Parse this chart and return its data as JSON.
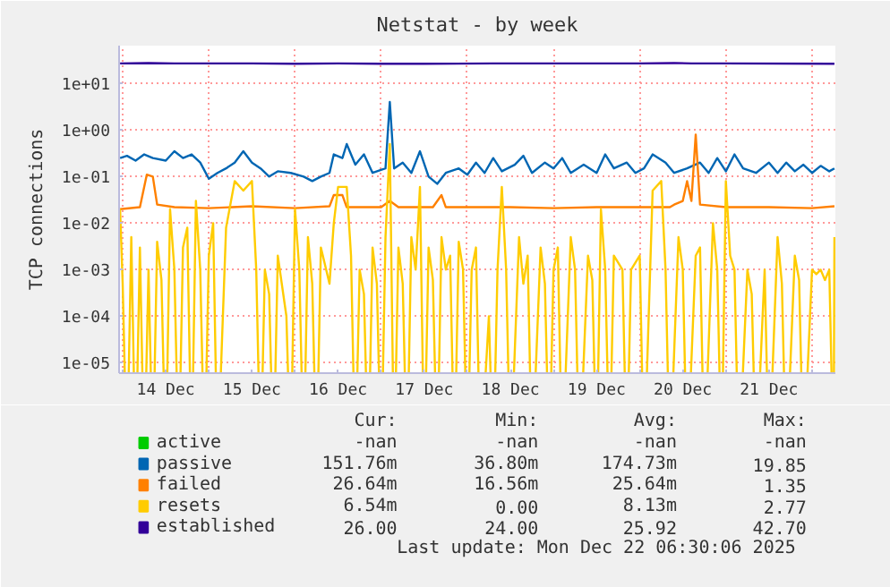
{
  "chart_data": {
    "type": "line",
    "title": "Netstat - by week",
    "ylabel": "TCP connections",
    "log": true,
    "grid": true,
    "legend": "bottom",
    "line_style": "solid",
    "xlim": [
      "2025-12-13T23:00",
      "2025-12-22T06:30"
    ],
    "xticks": [
      {
        "value": "2025-12-14T00:00",
        "label": null
      },
      {
        "value": "2025-12-14T12:00",
        "label": "14 Dec"
      },
      {
        "value": "2025-12-15T00:00",
        "label": null
      },
      {
        "value": "2025-12-15T12:00",
        "label": "15 Dec"
      },
      {
        "value": "2025-12-16T00:00",
        "label": null
      },
      {
        "value": "2025-12-16T12:00",
        "label": "16 Dec"
      },
      {
        "value": "2025-12-17T00:00",
        "label": null
      },
      {
        "value": "2025-12-17T12:00",
        "label": "17 Dec"
      },
      {
        "value": "2025-12-18T00:00",
        "label": null
      },
      {
        "value": "2025-12-18T12:00",
        "label": "18 Dec"
      },
      {
        "value": "2025-12-19T00:00",
        "label": null
      },
      {
        "value": "2025-12-19T12:00",
        "label": "19 Dec"
      },
      {
        "value": "2025-12-20T00:00",
        "label": null
      },
      {
        "value": "2025-12-20T12:00",
        "label": "20 Dec"
      },
      {
        "value": "2025-12-21T00:00",
        "label": null
      },
      {
        "value": "2025-12-21T12:00",
        "label": "21 Dec"
      },
      {
        "value": "2025-12-22T00:00",
        "label": null
      }
    ],
    "ylim": [
      6e-06,
      65
    ],
    "yticks": [
      {
        "value": 1e-05,
        "label": "1e-05"
      },
      {
        "value": 0.0001,
        "label": "1e-04"
      },
      {
        "value": 0.001,
        "label": "1e-03"
      },
      {
        "value": 0.01,
        "label": "1e-02"
      },
      {
        "value": 0.1,
        "label": "1e-01"
      },
      {
        "value": 1,
        "label": "1e+00"
      },
      {
        "value": 10,
        "label": "1e+01"
      }
    ],
    "series": [
      {
        "name": "active",
        "color": "#00cc00"
      },
      {
        "name": "passive",
        "color": "#0066b3",
        "x": [
          "2025-12-13T23:17",
          "2025-12-14T01:12",
          "2025-12-14T03:36",
          "2025-12-14T06:00",
          "2025-12-14T08:24",
          "2025-12-14T12:00",
          "2025-12-14T14:24",
          "2025-12-14T16:48",
          "2025-12-14T19:12",
          "2025-12-14T21:36",
          "2025-12-15T00:00",
          "2025-12-15T02:24",
          "2025-12-15T04:48",
          "2025-12-15T07:12",
          "2025-12-15T09:36",
          "2025-12-15T12:00",
          "2025-12-15T14:24",
          "2025-12-15T16:48",
          "2025-12-15T19:12",
          "2025-12-15T22:48",
          "2025-12-16T02:24",
          "2025-12-16T04:48",
          "2025-12-16T07:12",
          "2025-12-16T09:36",
          "2025-12-16T10:48",
          "2025-12-16T13:12",
          "2025-12-16T14:24",
          "2025-12-16T16:48",
          "2025-12-16T19:12",
          "2025-12-16T21:36",
          "2025-12-17T01:12",
          "2025-12-17T02:24",
          "2025-12-17T03:36",
          "2025-12-17T06:00",
          "2025-12-17T08:24",
          "2025-12-17T10:48",
          "2025-12-17T13:12",
          "2025-12-17T15:36",
          "2025-12-17T18:00",
          "2025-12-17T21:36",
          "2025-12-18T00:00",
          "2025-12-18T02:24",
          "2025-12-18T04:48",
          "2025-12-18T07:12",
          "2025-12-18T09:36",
          "2025-12-18T13:12",
          "2025-12-18T15:36",
          "2025-12-18T18:00",
          "2025-12-18T21:36",
          "2025-12-19T00:00",
          "2025-12-19T02:24",
          "2025-12-19T04:48",
          "2025-12-19T08:24",
          "2025-12-19T12:00",
          "2025-12-19T14:24",
          "2025-12-19T16:48",
          "2025-12-19T20:24",
          "2025-12-19T22:48",
          "2025-12-20T01:12",
          "2025-12-20T03:36",
          "2025-12-20T07:12",
          "2025-12-20T09:36",
          "2025-12-20T13:12",
          "2025-12-20T16:48",
          "2025-12-20T19:12",
          "2025-12-20T21:36",
          "2025-12-21T00:00",
          "2025-12-21T02:24",
          "2025-12-21T04:48",
          "2025-12-21T08:24",
          "2025-12-21T12:00",
          "2025-12-21T14:24",
          "2025-12-21T16:48",
          "2025-12-21T19:12",
          "2025-12-21T21:36",
          "2025-12-22T00:00",
          "2025-12-22T02:24",
          "2025-12-22T04:48",
          "2025-12-22T06:14"
        ],
        "values": [
          0.25,
          0.28,
          0.22,
          0.3,
          0.25,
          0.22,
          0.35,
          0.25,
          0.3,
          0.2,
          0.09,
          0.12,
          0.15,
          0.2,
          0.35,
          0.2,
          0.15,
          0.1,
          0.13,
          0.12,
          0.1,
          0.08,
          0.1,
          0.12,
          0.3,
          0.25,
          0.5,
          0.18,
          0.3,
          0.12,
          0.15,
          4.0,
          0.15,
          0.2,
          0.12,
          0.35,
          0.1,
          0.07,
          0.12,
          0.15,
          0.11,
          0.2,
          0.12,
          0.25,
          0.13,
          0.18,
          0.28,
          0.12,
          0.2,
          0.15,
          0.25,
          0.12,
          0.18,
          0.12,
          0.3,
          0.15,
          0.2,
          0.12,
          0.15,
          0.3,
          0.2,
          0.12,
          0.15,
          0.2,
          0.12,
          0.25,
          0.13,
          0.3,
          0.15,
          0.12,
          0.2,
          0.12,
          0.2,
          0.13,
          0.18,
          0.12,
          0.17,
          0.13,
          0.15
        ]
      },
      {
        "name": "failed",
        "color": "#ff8000",
        "x": [
          "2025-12-13T23:17",
          "2025-12-14T04:48",
          "2025-12-14T06:43",
          "2025-12-14T08:24",
          "2025-12-14T09:36",
          "2025-12-14T14:24",
          "2025-12-15T00:00",
          "2025-12-15T12:00",
          "2025-12-16T00:00",
          "2025-12-16T09:36",
          "2025-12-16T10:48",
          "2025-12-16T13:12",
          "2025-12-16T14:24",
          "2025-12-17T00:00",
          "2025-12-17T02:24",
          "2025-12-17T04:48",
          "2025-12-17T14:24",
          "2025-12-17T16:48",
          "2025-12-17T18:00",
          "2025-12-18T12:00",
          "2025-12-19T00:00",
          "2025-12-19T12:00",
          "2025-12-20T00:00",
          "2025-12-20T08:24",
          "2025-12-20T09:36",
          "2025-12-20T12:00",
          "2025-12-20T13:12",
          "2025-12-20T14:24",
          "2025-12-20T15:36",
          "2025-12-20T16:48",
          "2025-12-21T00:00",
          "2025-12-21T12:00",
          "2025-12-22T00:00",
          "2025-12-22T06:14"
        ],
        "values": [
          0.02,
          0.022,
          0.11,
          0.1,
          0.025,
          0.022,
          0.021,
          0.023,
          0.021,
          0.023,
          0.04,
          0.04,
          0.022,
          0.022,
          0.03,
          0.022,
          0.022,
          0.04,
          0.022,
          0.022,
          0.021,
          0.022,
          0.022,
          0.022,
          0.025,
          0.03,
          0.08,
          0.03,
          0.8,
          0.025,
          0.022,
          0.022,
          0.021,
          0.023
        ]
      },
      {
        "name": "resets",
        "color": "#ffcc00",
        "x": [
          "2025-12-13T23:17",
          "2025-12-14T00:00",
          "2025-12-14T01:12",
          "2025-12-14T02:24",
          "2025-12-14T03:36",
          "2025-12-14T04:48",
          "2025-12-14T06:00",
          "2025-12-14T07:12",
          "2025-12-14T08:24",
          "2025-12-14T09:36",
          "2025-12-14T10:48",
          "2025-12-14T12:00",
          "2025-12-14T13:12",
          "2025-12-14T14:24",
          "2025-12-14T15:36",
          "2025-12-14T16:48",
          "2025-12-14T18:00",
          "2025-12-14T19:12",
          "2025-12-14T20:24",
          "2025-12-14T21:36",
          "2025-12-14T22:48",
          "2025-12-15T00:00",
          "2025-12-15T01:12",
          "2025-12-15T02:24",
          "2025-12-15T04:48",
          "2025-12-15T07:12",
          "2025-12-15T09:36",
          "2025-12-15T12:00",
          "2025-12-15T13:12",
          "2025-12-15T14:24",
          "2025-12-15T15:36",
          "2025-12-15T16:48",
          "2025-12-15T18:00",
          "2025-12-15T19:12",
          "2025-12-15T21:36",
          "2025-12-15T22:48",
          "2025-12-16T00:00",
          "2025-12-16T01:12",
          "2025-12-16T02:24",
          "2025-12-16T03:36",
          "2025-12-16T04:48",
          "2025-12-16T06:00",
          "2025-12-16T07:12",
          "2025-12-16T09:36",
          "2025-12-16T10:48",
          "2025-12-16T12:00",
          "2025-12-16T14:24",
          "2025-12-16T15:36",
          "2025-12-16T16:48",
          "2025-12-16T18:00",
          "2025-12-16T19:12",
          "2025-12-16T20:24",
          "2025-12-16T21:36",
          "2025-12-16T22:48",
          "2025-12-17T00:00",
          "2025-12-17T01:12",
          "2025-12-17T02:24",
          "2025-12-17T03:36",
          "2025-12-17T04:48",
          "2025-12-17T06:00",
          "2025-12-17T07:12",
          "2025-12-17T08:24",
          "2025-12-17T09:36",
          "2025-12-17T10:48",
          "2025-12-17T12:00",
          "2025-12-17T13:12",
          "2025-12-17T14:24",
          "2025-12-17T15:36",
          "2025-12-17T16:48",
          "2025-12-17T18:00",
          "2025-12-17T19:12",
          "2025-12-17T20:24",
          "2025-12-17T21:36",
          "2025-12-17T22:48",
          "2025-12-18T00:00",
          "2025-12-18T01:12",
          "2025-12-18T02:24",
          "2025-12-18T03:36",
          "2025-12-18T06:00",
          "2025-12-18T07:12",
          "2025-12-18T08:24",
          "2025-12-18T09:36",
          "2025-12-18T10:48",
          "2025-12-18T12:00",
          "2025-12-18T14:24",
          "2025-12-18T15:36",
          "2025-12-18T16:48",
          "2025-12-18T18:00",
          "2025-12-18T20:24",
          "2025-12-18T21:36",
          "2025-12-18T22:48",
          "2025-12-19T00:00",
          "2025-12-19T01:12",
          "2025-12-19T02:24",
          "2025-12-19T04:48",
          "2025-12-19T06:00",
          "2025-12-19T07:12",
          "2025-12-19T09:36",
          "2025-12-19T10:48",
          "2025-12-19T12:00",
          "2025-12-19T13:12",
          "2025-12-19T14:24",
          "2025-12-19T15:36",
          "2025-12-19T16:48",
          "2025-12-19T19:12",
          "2025-12-19T20:24",
          "2025-12-19T21:36",
          "2025-12-20T00:00",
          "2025-12-20T01:12",
          "2025-12-20T03:36",
          "2025-12-20T06:00",
          "2025-12-20T07:12",
          "2025-12-20T08:24",
          "2025-12-20T10:48",
          "2025-12-20T12:00",
          "2025-12-20T13:12",
          "2025-12-20T15:36",
          "2025-12-20T16:48",
          "2025-12-20T18:00",
          "2025-12-20T20:24",
          "2025-12-20T21:36",
          "2025-12-20T22:48",
          "2025-12-21T00:00",
          "2025-12-21T01:12",
          "2025-12-21T02:24",
          "2025-12-21T03:36",
          "2025-12-21T06:00",
          "2025-12-21T07:12",
          "2025-12-21T08:24",
          "2025-12-21T10:48",
          "2025-12-21T12:00",
          "2025-12-21T14:24",
          "2025-12-21T15:36",
          "2025-12-21T16:48",
          "2025-12-21T19:12",
          "2025-12-21T20:24",
          "2025-12-21T21:36",
          "2025-12-22T00:00",
          "2025-12-22T01:12",
          "2025-12-22T02:24",
          "2025-12-22T03:36",
          "2025-12-22T04:48",
          "2025-12-22T06:00",
          "2025-12-22T06:14"
        ],
        "values": [
          0.02,
          0.0005,
          null,
          0.005,
          null,
          0.003,
          null,
          0.001,
          null,
          0.004,
          0.0006,
          null,
          0.02,
          0.001,
          null,
          0.003,
          0.008,
          null,
          0.03,
          0.001,
          null,
          0.002,
          0.01,
          null,
          0.008,
          0.08,
          0.05,
          0.08,
          0.001,
          null,
          0.001,
          0.0003,
          null,
          0.002,
          0.0001,
          null,
          0.02,
          0.001,
          null,
          0.005,
          0.0005,
          null,
          0.003,
          0.0005,
          0.01,
          0.06,
          0.06,
          0.002,
          null,
          0.001,
          0.0003,
          null,
          0.003,
          0.0005,
          null,
          0.005,
          0.5,
          null,
          0.003,
          0.0005,
          null,
          0.005,
          0.001,
          0.06,
          null,
          0.003,
          0.0006,
          null,
          0.005,
          0.001,
          0.002,
          null,
          0.004,
          0.001,
          null,
          0.001,
          0.003,
          null,
          0.0001,
          null,
          0.001,
          0.06,
          0.001,
          null,
          0.005,
          0.0005,
          0.002,
          null,
          0.003,
          0.0005,
          null,
          0.001,
          0.003,
          null,
          0.005,
          0.001,
          null,
          0.002,
          0.0006,
          null,
          0.02,
          0.001,
          null,
          0.002,
          0.001,
          null,
          0.001,
          0.002,
          null,
          0.05,
          0.08,
          0.001,
          null,
          0.005,
          0.001,
          null,
          0.002,
          0.003,
          null,
          0.01,
          0.001,
          null,
          0.08,
          0.002,
          0.001,
          null,
          0.001,
          0.0003,
          null,
          0.001,
          null,
          0.005,
          0.0005,
          null,
          0.002,
          0.0006,
          null,
          0.001,
          0.0008,
          0.001,
          0.0006,
          0.001,
          null,
          0.005
        ]
      },
      {
        "name": "established",
        "color": "#330099",
        "x": [
          "2025-12-13T23:17",
          "2025-12-14T07:12",
          "2025-12-14T14:24",
          "2025-12-15T12:00",
          "2025-12-16T00:00",
          "2025-12-16T12:00",
          "2025-12-17T00:00",
          "2025-12-17T12:00",
          "2025-12-18T07:12",
          "2025-12-19T07:12",
          "2025-12-20T00:00",
          "2025-12-20T09:36",
          "2025-12-20T14:24",
          "2025-12-21T00:00",
          "2025-12-22T06:14"
        ],
        "values": [
          27,
          27.5,
          27,
          27,
          26.5,
          27,
          26.5,
          26.5,
          27,
          27,
          27,
          27.5,
          27,
          27,
          26.5
        ]
      }
    ],
    "annotations": [
      "Cur:",
      "Min:",
      "Avg:",
      "Max:",
      "-nan",
      "-nan",
      "-nan",
      "-nan",
      "151.76m",
      "36.80m",
      "174.73m",
      "19.85",
      "26.64m",
      "16.56m",
      "25.64m",
      "1.35",
      "6.54m",
      "0.00",
      "8.13m",
      "2.77",
      "26.00",
      "24.00",
      "25.92",
      "42.70",
      "Last update:  Mon Dec 22 06:30:06 2025"
    ]
  }
}
